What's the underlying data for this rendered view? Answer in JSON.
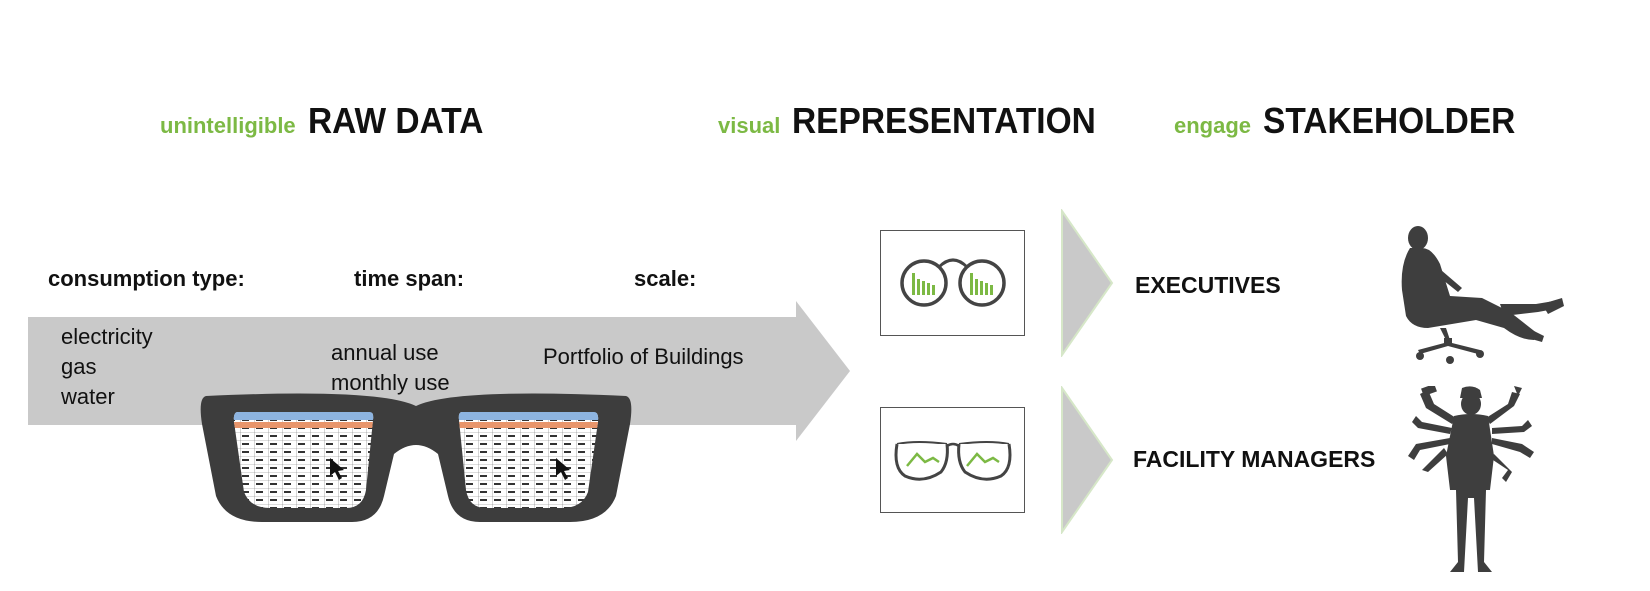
{
  "headings": {
    "raw": {
      "adjective": "unintelligible",
      "title": "RAW DATA"
    },
    "visual": {
      "adjective": "visual",
      "title": "REPRESENTATION"
    },
    "engage": {
      "adjective": "engage",
      "title": "STAKEHOLDER"
    }
  },
  "parameters": {
    "consumption": {
      "label": "consumption type:",
      "values": [
        "electricity",
        "gas",
        "water"
      ]
    },
    "time": {
      "label": "time span:",
      "values": [
        "annual use",
        "monthly use"
      ]
    },
    "scale": {
      "label": "scale:",
      "values": [
        "Portfolio of Buildings"
      ]
    }
  },
  "stakeholders": {
    "executives": {
      "label": "EXECUTIVES"
    },
    "facility": {
      "label": "FACILITY MANAGERS"
    }
  },
  "colors": {
    "accent_green": "#7cb944",
    "band_gray": "#c9c9c9",
    "glasses_dark": "#3d3d3d",
    "spreadsheet_orange": "#e8956b",
    "spreadsheet_blue": "#8db4e0",
    "silhouette": "#3e3e3e"
  },
  "icons": {
    "big_glasses": "glasses-with-spreadsheet-lenses-icon",
    "exec_card": "round-glasses-bar-chart-icon",
    "fm_card": "aviator-glasses-line-chart-icon",
    "executive": "executive-in-chair-silhouette-icon",
    "facility": "multi-armed-worker-with-tools-silhouette-icon"
  }
}
